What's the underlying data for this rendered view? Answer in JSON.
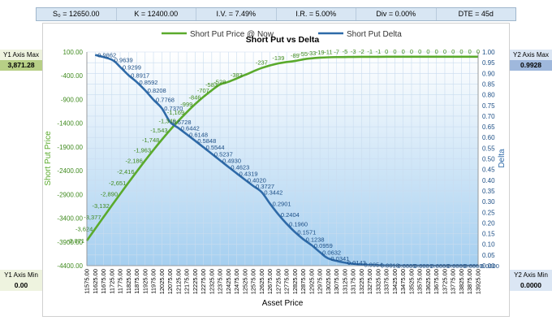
{
  "params": [
    {
      "label": "S₀ = 12650.00"
    },
    {
      "label": "K = 12400.00"
    },
    {
      "label": "I.V. = 7.49%"
    },
    {
      "label": "I.R. = 5.00%"
    },
    {
      "label": "Div = 0.00%"
    },
    {
      "label": "DTE = 45d"
    }
  ],
  "y1_max": {
    "label": "Y1 Axis Max",
    "value": "3,871.28"
  },
  "y1_min": {
    "label": "Y1 Axis Min",
    "value": "0.00"
  },
  "y2_max": {
    "label": "Y2 Axis Max",
    "value": "0.9928"
  },
  "y2_min": {
    "label": "Y2 Axis Min",
    "value": "0.0000"
  },
  "colors": {
    "price": "#5aaa2c",
    "delta": "#2e6aa8",
    "grid": "#c9dcef",
    "fill_top": "#ffffff",
    "fill_bottom": "#a5cff0"
  },
  "chart_data": {
    "type": "line",
    "title": "Short Put vs Delta",
    "xlabel": "Asset Price",
    "ylabel": "Short Put Price",
    "y2label": "Delta",
    "ylim": [
      -4400,
      100
    ],
    "y2lim": [
      0,
      1
    ],
    "y_ticks": [
      "100.00",
      "-400.00",
      "-900.00",
      "-1400.00",
      "-1900.00",
      "-2400.00",
      "-2900.00",
      "-3400.00",
      "-3900.00",
      "-4400.00"
    ],
    "y2_ticks": [
      "1.00",
      "0.95",
      "0.90",
      "0.85",
      "0.80",
      "0.75",
      "0.70",
      "0.65",
      "0.60",
      "0.55",
      "0.50",
      "0.45",
      "0.40",
      "0.35",
      "0.30",
      "0.25",
      "0.20",
      "0.15",
      "0.10",
      "0.05",
      "0.00"
    ],
    "x": [
      "11575.00",
      "11625.00",
      "11675.00",
      "11725.00",
      "11775.00",
      "11825.00",
      "11875.00",
      "11925.00",
      "11975.00",
      "12025.00",
      "12075.00",
      "12125.00",
      "12175.00",
      "12225.00",
      "12275.00",
      "12325.00",
      "12375.00",
      "12425.00",
      "12475.00",
      "12525.00",
      "12575.00",
      "12625.00",
      "12675.00",
      "12725.00",
      "12775.00",
      "12825.00",
      "12875.00",
      "12925.00",
      "12975.00",
      "13025.00",
      "13075.00",
      "13125.00",
      "13175.00",
      "13225.00",
      "13275.00",
      "13325.00",
      "13375.00",
      "13425.00",
      "13475.00",
      "13525.00",
      "13575.00",
      "13625.00",
      "13675.00",
      "13725.00",
      "13775.00",
      "13825.00",
      "13875.00",
      "13925.00"
    ],
    "series": [
      {
        "name": "Short Put Price @ Now",
        "axis": "y1",
        "points": [
          [
            11575,
            -3871
          ],
          [
            11625,
            -3624
          ],
          [
            11675,
            -3377
          ],
          [
            11725,
            -3132
          ],
          [
            11775,
            -2890
          ],
          [
            11825,
            -2651
          ],
          [
            11875,
            -2416
          ],
          [
            11925,
            -2186
          ],
          [
            11975,
            -1963
          ],
          [
            12025,
            -1748
          ],
          [
            12075,
            -1543
          ],
          [
            12125,
            -1349
          ],
          [
            12175,
            -1169
          ],
          [
            12225,
            -999
          ],
          [
            12275,
            -846
          ],
          [
            12325,
            -707
          ],
          [
            12375,
            -583
          ],
          [
            12425,
            -528
          ],
          [
            12525,
            -383
          ],
          [
            12625,
            -237
          ],
          [
            12725,
            -139
          ],
          [
            12825,
            -89
          ],
          [
            12875,
            -55
          ],
          [
            12925,
            -33
          ],
          [
            12975,
            -19
          ],
          [
            13025,
            -11
          ],
          [
            13075,
            -7
          ],
          [
            13125,
            -5
          ],
          [
            13175,
            -3
          ],
          [
            13225,
            -2
          ],
          [
            13275,
            -1
          ],
          [
            13325,
            -1
          ],
          [
            13375,
            0
          ],
          [
            13425,
            0
          ],
          [
            13475,
            0
          ],
          [
            13525,
            0
          ],
          [
            13575,
            0
          ],
          [
            13625,
            0
          ],
          [
            13675,
            0
          ],
          [
            13725,
            0
          ],
          [
            13775,
            0
          ],
          [
            13825,
            0
          ],
          [
            13875,
            0
          ],
          [
            13925,
            0
          ]
        ],
        "labels": [
          "-3,871",
          "-3,624",
          "-3,377",
          "-3,132",
          "-2,890",
          "-2,651",
          "-2,416",
          "-2,186",
          "-1,963",
          "-1,748",
          "-1,543",
          "-1,349",
          "-1,169",
          "-999",
          "-846",
          "-707",
          "-583",
          "-528",
          "-383",
          "-237",
          "-139",
          "-89",
          "-55",
          "-33",
          "-19",
          "-11",
          "-7",
          "-5",
          "-3",
          "-2",
          "-1",
          "-1",
          "0",
          "0",
          "0",
          "0",
          "0",
          "0",
          "0",
          "0",
          "0",
          "0",
          "0",
          "0"
        ]
      },
      {
        "name": "Short Put Delta",
        "axis": "y2",
        "points": [
          [
            11625,
            0.9862
          ],
          [
            11725,
            0.9639
          ],
          [
            11775,
            0.9299
          ],
          [
            11825,
            0.8917
          ],
          [
            11875,
            0.8592
          ],
          [
            11925,
            0.8208
          ],
          [
            11975,
            0.7768
          ],
          [
            12025,
            0.737
          ],
          [
            12075,
            0.6728
          ],
          [
            12125,
            0.6442
          ],
          [
            12175,
            0.6148
          ],
          [
            12225,
            0.5848
          ],
          [
            12275,
            0.5544
          ],
          [
            12325,
            0.5237
          ],
          [
            12375,
            0.493
          ],
          [
            12425,
            0.4623
          ],
          [
            12475,
            0.4319
          ],
          [
            12525,
            0.402
          ],
          [
            12575,
            0.3727
          ],
          [
            12625,
            0.3442
          ],
          [
            12675,
            0.2901
          ],
          [
            12725,
            0.2404
          ],
          [
            12775,
            0.196
          ],
          [
            12825,
            0.1571
          ],
          [
            12875,
            0.1238
          ],
          [
            12925,
            0.0959
          ],
          [
            12975,
            0.0632
          ],
          [
            13025,
            0.0341
          ],
          [
            13125,
            0.0143
          ],
          [
            13225,
            0.0054
          ],
          [
            13325,
            0.0018
          ],
          [
            13425,
            0.0005
          ],
          [
            13525,
            0.0001
          ],
          [
            13625,
            0.0
          ],
          [
            13725,
            0.0
          ],
          [
            13825,
            0.0
          ],
          [
            13925,
            0.0
          ]
        ],
        "labels": [
          "0.9862",
          "0.9639",
          "0.9299",
          "0.8917",
          "0.8592",
          "0.8208",
          "0.7768",
          "0.7370",
          "0.6728",
          "0.6442",
          "0.6148",
          "0.5848",
          "0.5544",
          "0.5237",
          "0.4930",
          "0.4623",
          "0.4319",
          "0.4020",
          "0.3727",
          "0.3442",
          "0.2901",
          "0.2404",
          "0.1960",
          "0.1571",
          "0.1238",
          "0.0959",
          "0.0632",
          "0.0341",
          "0.0143",
          "0.0054",
          "0.0018",
          "0.0005",
          "0.0001",
          "0.0000",
          "0.0000",
          "0.0000",
          "0.0000"
        ]
      }
    ],
    "legend_position": "top",
    "grid": true
  }
}
